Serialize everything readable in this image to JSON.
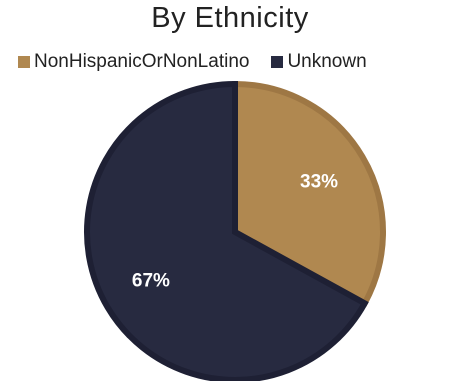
{
  "chart_data": {
    "type": "pie",
    "title": "By Ethnicity",
    "legend_position": "top",
    "categories": [
      "NonHispanicOrNonLatino",
      "Unknown"
    ],
    "values": [
      33,
      67
    ],
    "labels": [
      "33%",
      "67%"
    ],
    "colors": [
      "#b08850",
      "#272a40"
    ],
    "edge_colors": [
      "#9e7744",
      "#1e2034"
    ]
  }
}
